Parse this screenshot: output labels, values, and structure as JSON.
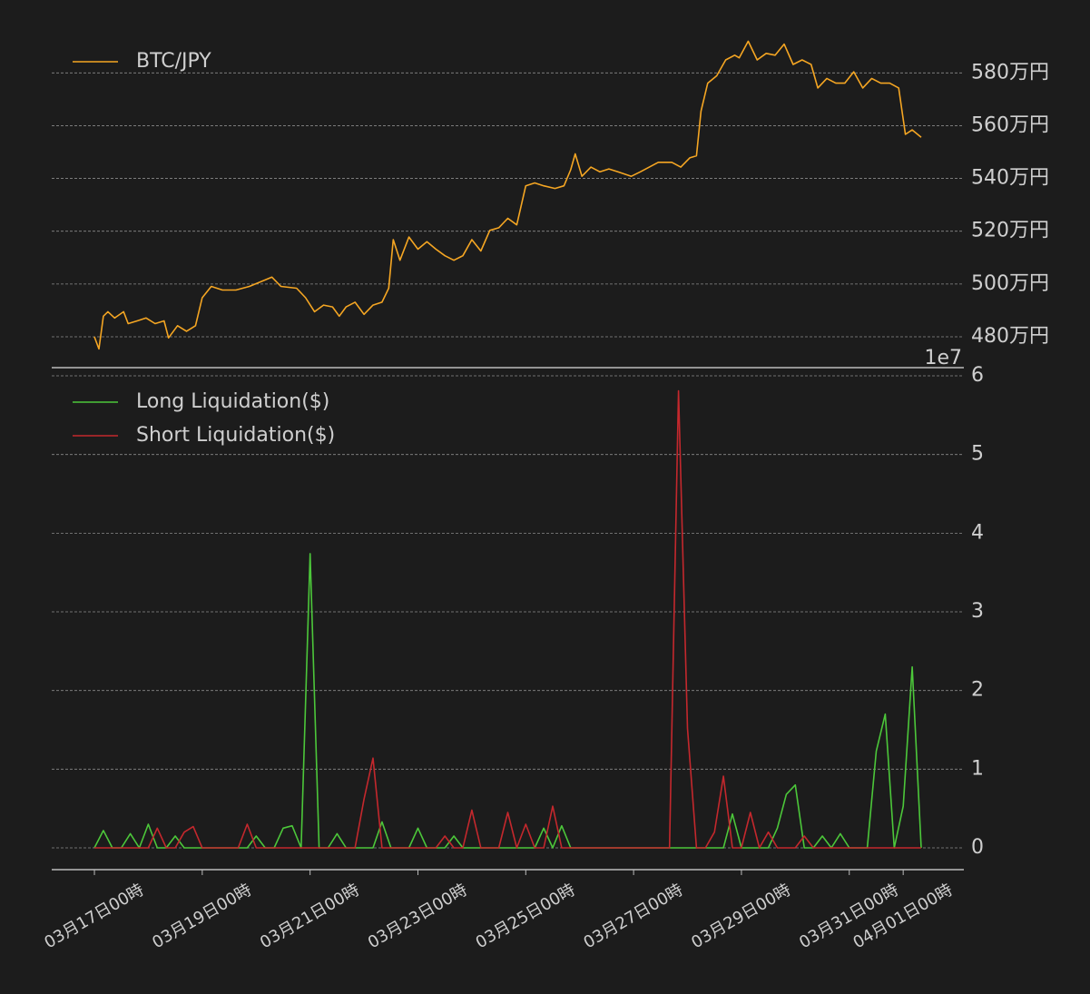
{
  "chart_data": [
    {
      "type": "line",
      "xlim": [
        "03-16T05",
        "04-02T03"
      ],
      "ylim": [
        4683000,
        5973000
      ],
      "yticks": [
        {
          "value": 4800000,
          "label": "480万円"
        },
        {
          "value": 5000000,
          "label": "500万円"
        },
        {
          "value": 5200000,
          "label": "520万円"
        },
        {
          "value": 5400000,
          "label": "540万円"
        },
        {
          "value": 5600000,
          "label": "560万円"
        },
        {
          "value": 5800000,
          "label": "580万円"
        }
      ],
      "grid": true,
      "legend": "upper left",
      "x": [
        "03-17T00",
        "03-17T02",
        "03-17T04",
        "03-17T06",
        "03-17T09",
        "03-17T13",
        "03-17T15",
        "03-17T19",
        "03-17T23",
        "03-18T03",
        "03-18T07",
        "03-18T09",
        "03-18T13",
        "03-18T17",
        "03-18T21",
        "03-19T00",
        "03-19T04",
        "03-19T09",
        "03-19T15",
        "03-19T21",
        "03-20T03",
        "03-20T07",
        "03-20T11",
        "03-20T18",
        "03-20T22",
        "03-21T02",
        "03-21T06",
        "03-21T10",
        "03-21T13",
        "03-21T16",
        "03-21T20",
        "03-22T00",
        "03-22T04",
        "03-22T08",
        "03-22T11",
        "03-22T13",
        "03-22T16",
        "03-22T20",
        "03-23T00",
        "03-23T04",
        "03-23T08",
        "03-23T12",
        "03-23T16",
        "03-23T20",
        "03-24T00",
        "03-24T04",
        "03-24T08",
        "03-24T12",
        "03-24T16",
        "03-24T20",
        "03-25T00",
        "03-25T04",
        "03-25T08",
        "03-25T13",
        "03-25T17",
        "03-25T20",
        "03-25T22",
        "03-26T01",
        "03-26T05",
        "03-26T09",
        "03-26T13",
        "03-26T17",
        "03-26T23",
        "03-27T03",
        "03-27T07",
        "03-27T11",
        "03-27T17",
        "03-27T21",
        "03-28T01",
        "03-28T04",
        "03-28T06",
        "03-28T09",
        "03-28T13",
        "03-28T17",
        "03-28T21",
        "03-28T23",
        "03-29T03",
        "03-29T07",
        "03-29T11",
        "03-29T15",
        "03-29T19",
        "03-29T23",
        "03-30T03",
        "03-30T07",
        "03-30T10",
        "03-30T14",
        "03-30T18",
        "03-30T22",
        "03-31T02",
        "03-31T06",
        "03-31T10",
        "03-31T14",
        "03-31T18",
        "03-31T22",
        "04-01T01",
        "04-01T04",
        "04-01T08"
      ],
      "series": [
        {
          "name": "BTC/JPY",
          "color": "#f5a623",
          "values": [
            4800000,
            4754000,
            4878000,
            4895000,
            4871000,
            4895000,
            4850000,
            4860000,
            4871000,
            4850000,
            4860000,
            4796000,
            4842000,
            4821000,
            4842000,
            4948000,
            4991000,
            4977000,
            4977000,
            4991000,
            5012000,
            5026000,
            4991000,
            4984000,
            4948000,
            4895000,
            4920000,
            4913000,
            4878000,
            4913000,
            4931000,
            4885000,
            4920000,
            4931000,
            4984000,
            5168000,
            5090000,
            5178000,
            5132000,
            5160000,
            5132000,
            5107000,
            5090000,
            5107000,
            5168000,
            5125000,
            5203000,
            5213000,
            5249000,
            5224000,
            5372000,
            5383000,
            5372000,
            5362000,
            5372000,
            5433000,
            5493000,
            5408000,
            5443000,
            5425000,
            5436000,
            5425000,
            5408000,
            5425000,
            5443000,
            5461000,
            5461000,
            5443000,
            5478000,
            5486000,
            5655000,
            5761000,
            5789000,
            5849000,
            5867000,
            5857000,
            5920000,
            5849000,
            5874000,
            5867000,
            5909000,
            5832000,
            5849000,
            5832000,
            5743000,
            5779000,
            5761000,
            5761000,
            5804000,
            5743000,
            5779000,
            5761000,
            5761000,
            5743000,
            5567000,
            5584000,
            5556000
          ]
        }
      ]
    },
    {
      "type": "line",
      "xlim": [
        "03-16T05",
        "04-02T03"
      ],
      "ylim": [
        -2770000,
        61040000
      ],
      "yticks": [
        0,
        {
          "value": 10000000,
          "label": "1"
        },
        {
          "value": 20000000,
          "label": "2"
        },
        {
          "value": 30000000,
          "label": "3"
        },
        {
          "value": 40000000,
          "label": "4"
        },
        {
          "value": 50000000,
          "label": "5"
        },
        {
          "value": 60000000,
          "label": "6"
        }
      ],
      "y_offset_label": "1e7",
      "grid": true,
      "legend": "upper left",
      "xticks": [
        {
          "value": "03-17T00",
          "label": "03月17日00時"
        },
        {
          "value": "03-19T00",
          "label": "03月19日00時"
        },
        {
          "value": "03-21T00",
          "label": "03月21日00時"
        },
        {
          "value": "03-23T00",
          "label": "03月23日00時"
        },
        {
          "value": "03-25T00",
          "label": "03月25日00時"
        },
        {
          "value": "03-27T00",
          "label": "03月27日00時"
        },
        {
          "value": "03-29T00",
          "label": "03月29日00時"
        },
        {
          "value": "03-31T00",
          "label": "03月31日00時"
        },
        {
          "value": "04-01T00",
          "label": "04月01日00時"
        }
      ],
      "x": [
        "03-17T00",
        "03-17T04",
        "03-17T08",
        "03-17T12",
        "03-17T16",
        "03-17T20",
        "03-18T00",
        "03-18T04",
        "03-18T08",
        "03-18T12",
        "03-18T16",
        "03-18T20",
        "03-19T00",
        "03-19T04",
        "03-19T08",
        "03-19T12",
        "03-19T16",
        "03-19T20",
        "03-20T00",
        "03-20T04",
        "03-20T08",
        "03-20T12",
        "03-20T16",
        "03-20T20",
        "03-21T00",
        "03-21T04",
        "03-21T08",
        "03-21T12",
        "03-21T16",
        "03-21T20",
        "03-22T00",
        "03-22T04",
        "03-22T08",
        "03-22T12",
        "03-22T16",
        "03-22T20",
        "03-23T00",
        "03-23T04",
        "03-23T08",
        "03-23T12",
        "03-23T16",
        "03-23T20",
        "03-24T00",
        "03-24T04",
        "03-24T08",
        "03-24T12",
        "03-24T16",
        "03-24T20",
        "03-25T00",
        "03-25T04",
        "03-25T08",
        "03-25T12",
        "03-25T16",
        "03-25T20",
        "03-26T00",
        "03-26T04",
        "03-26T08",
        "03-26T12",
        "03-26T16",
        "03-26T20",
        "03-27T00",
        "03-27T04",
        "03-27T08",
        "03-27T12",
        "03-27T16",
        "03-27T20",
        "03-28T00",
        "03-28T04",
        "03-28T08",
        "03-28T12",
        "03-28T16",
        "03-28T20",
        "03-29T00",
        "03-29T04",
        "03-29T08",
        "03-29T12",
        "03-29T16",
        "03-29T20",
        "03-30T00",
        "03-30T04",
        "03-30T08",
        "03-30T12",
        "03-30T16",
        "03-30T20",
        "03-31T00",
        "03-31T04",
        "03-31T08",
        "03-31T12",
        "03-31T16",
        "03-31T20",
        "04-01T00",
        "04-01T04",
        "04-01T08"
      ],
      "series": [
        {
          "name": "Long Liquidation($)",
          "color": "#4cc73a",
          "values": [
            0,
            2200000,
            0,
            0,
            1800000,
            0,
            3000000,
            0,
            0,
            1500000,
            0,
            0,
            0,
            0,
            0,
            0,
            0,
            0,
            1500000,
            0,
            0,
            2500000,
            2800000,
            0,
            37400000,
            0,
            0,
            1800000,
            0,
            0,
            0,
            0,
            3300000,
            0,
            0,
            0,
            2500000,
            0,
            0,
            0,
            1500000,
            0,
            0,
            0,
            0,
            0,
            0,
            0,
            0,
            0,
            2500000,
            0,
            2800000,
            0,
            0,
            0,
            0,
            0,
            0,
            0,
            0,
            0,
            0,
            0,
            0,
            0,
            0,
            0,
            0,
            0,
            0,
            4300000,
            0,
            0,
            0,
            0,
            2500000,
            6800000,
            8000000,
            0,
            0,
            1500000,
            0,
            1800000,
            0,
            0,
            0,
            12300000,
            17000000,
            0,
            5300000,
            23000000,
            0
          ]
        },
        {
          "name": "Short Liquidation($)",
          "color": "#c4282d",
          "values": [
            0,
            0,
            0,
            0,
            0,
            0,
            0,
            2500000,
            0,
            0,
            2000000,
            2700000,
            0,
            0,
            0,
            0,
            0,
            3000000,
            0,
            0,
            0,
            0,
            0,
            0,
            0,
            0,
            0,
            0,
            0,
            0,
            6200000,
            11400000,
            0,
            0,
            0,
            0,
            0,
            0,
            0,
            1500000,
            0,
            0,
            4800000,
            0,
            0,
            0,
            4500000,
            0,
            3000000,
            0,
            0,
            5300000,
            0,
            0,
            0,
            0,
            0,
            0,
            0,
            0,
            0,
            0,
            0,
            0,
            0,
            58100000,
            15200000,
            0,
            0,
            2000000,
            9100000,
            0,
            0,
            4500000,
            0,
            2000000,
            0,
            0,
            0,
            1500000,
            0,
            0,
            0,
            0,
            0,
            0,
            0,
            0,
            0,
            0,
            0,
            0,
            0
          ]
        }
      ]
    }
  ]
}
